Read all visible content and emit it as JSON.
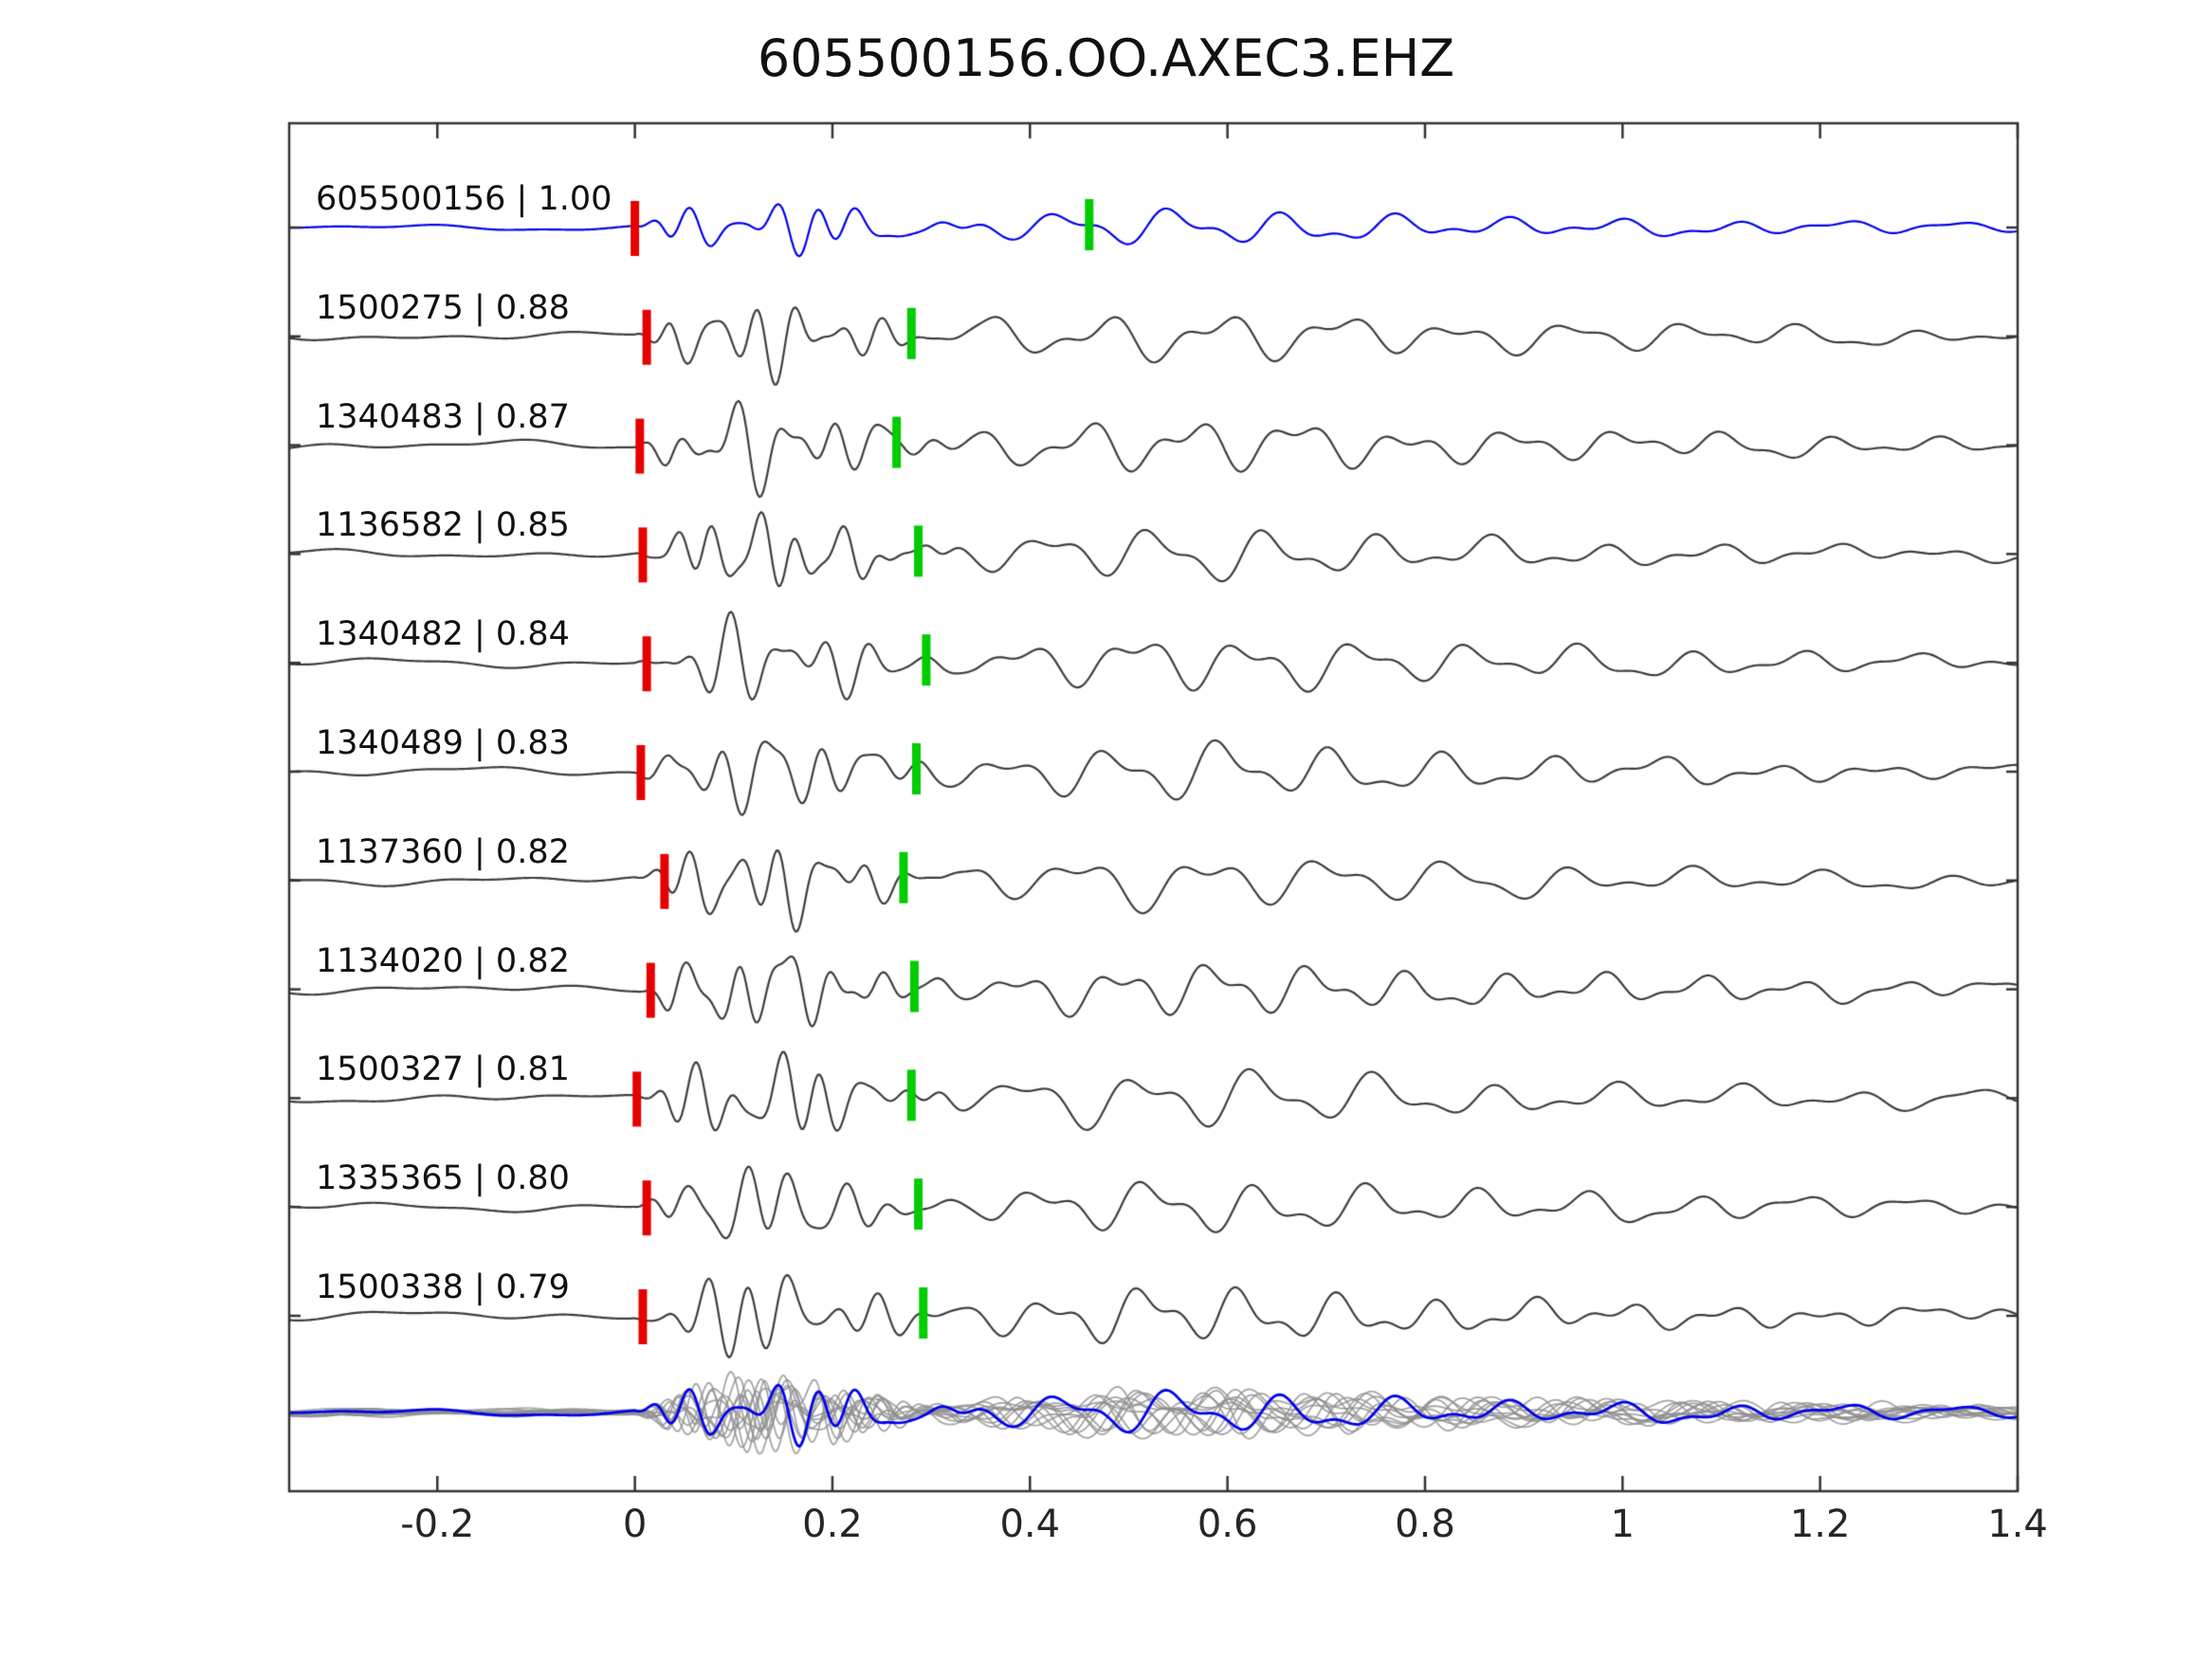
{
  "title": "605500156.OO.AXEC3.EHZ",
  "colors": {
    "template_trace": "#0000ee",
    "match_trace": "#3d3d3d",
    "stack_trace": "#8f8f8f",
    "pick_start": "#e60000",
    "pick_end": "#00cc00",
    "axis": "#333333"
  },
  "axis": {
    "xlim": [
      -0.35,
      1.4
    ],
    "ticks": [
      -0.2,
      0,
      0.2,
      0.4,
      0.6,
      0.8,
      1,
      1.2,
      1.4
    ],
    "tick_labels": [
      "-0.2",
      "0",
      "0.2",
      "0.4",
      "0.6",
      "0.8",
      "1",
      "1.2",
      "1.4"
    ]
  },
  "chart_data": {
    "type": "line",
    "title": "605500156.OO.AXEC3.EHZ",
    "xlabel": "",
    "ylabel": "",
    "description": "Seismogram template-match comparison: 11 aligned waveform traces labeled with event id and correlation coefficient, red tick = alignment pick near t=0, green tick = secondary pick, bottom row = overlaid stack of all traces (gray) with template overlay (blue).",
    "traces": [
      {
        "label": "605500156 | 1.00",
        "id": "605500156",
        "correlation": 1.0,
        "color": "template",
        "red_pick": 0.0,
        "green_pick": 0.46
      },
      {
        "label": "1500275 | 0.88",
        "id": "1500275",
        "correlation": 0.88,
        "color": "match",
        "red_pick": 0.012,
        "green_pick": 0.28
      },
      {
        "label": "1340483 | 0.87",
        "id": "1340483",
        "correlation": 0.87,
        "color": "match",
        "red_pick": 0.005,
        "green_pick": 0.265
      },
      {
        "label": "1136582 | 0.85",
        "id": "1136582",
        "correlation": 0.85,
        "color": "match",
        "red_pick": 0.008,
        "green_pick": 0.287
      },
      {
        "label": "1340482 | 0.84",
        "id": "1340482",
        "correlation": 0.84,
        "color": "match",
        "red_pick": 0.012,
        "green_pick": 0.295
      },
      {
        "label": "1340489 | 0.83",
        "id": "1340489",
        "correlation": 0.83,
        "color": "match",
        "red_pick": 0.006,
        "green_pick": 0.285
      },
      {
        "label": "1137360 | 0.82",
        "id": "1137360",
        "correlation": 0.82,
        "color": "match",
        "red_pick": 0.03,
        "green_pick": 0.272
      },
      {
        "label": "1134020 | 0.82",
        "id": "1134020",
        "correlation": 0.82,
        "color": "match",
        "red_pick": 0.016,
        "green_pick": 0.283
      },
      {
        "label": "1500327 | 0.81",
        "id": "1500327",
        "correlation": 0.81,
        "color": "match",
        "red_pick": 0.002,
        "green_pick": 0.28
      },
      {
        "label": "1335365 | 0.80",
        "id": "1335365",
        "correlation": 0.8,
        "color": "match",
        "red_pick": 0.012,
        "green_pick": 0.287
      },
      {
        "label": "1500338 | 0.79",
        "id": "1500338",
        "correlation": 0.79,
        "color": "match",
        "red_pick": 0.008,
        "green_pick": 0.292
      }
    ],
    "stack": {
      "gray_overlay_count": 11,
      "has_blue_template_overlay": true
    }
  }
}
